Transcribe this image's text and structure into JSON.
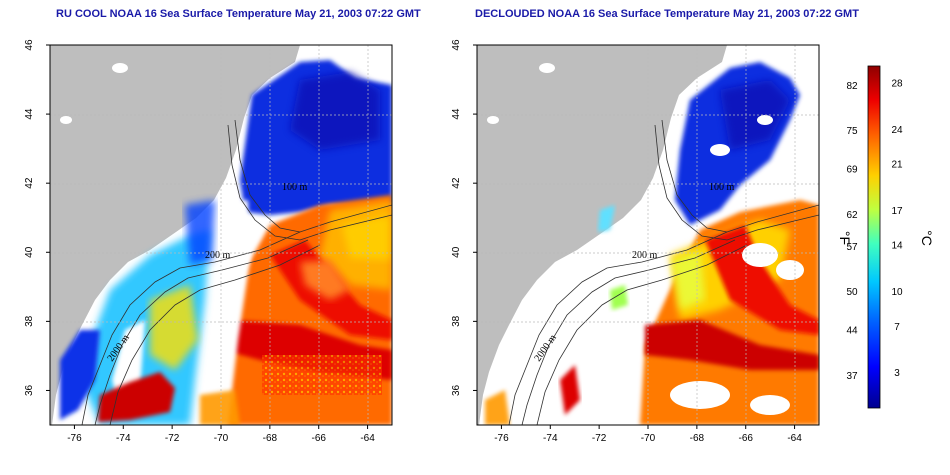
{
  "maps": [
    {
      "id": "left",
      "title": "RU COOL NOAA 16 Sea Surface Temperature May 21, 2003 07:22 GMT",
      "contour_labels": [
        "200 m",
        "100 m",
        "2000 m"
      ]
    },
    {
      "id": "right",
      "title": "DECLOUDED NOAA 16 Sea Surface Temperature May 21, 2003 07:22 GMT",
      "contour_labels": [
        "200 m",
        "100 m",
        "2000 m"
      ]
    }
  ],
  "axes": {
    "lon_ticks": [
      "-76",
      "-74",
      "-72",
      "-70",
      "-68",
      "-66",
      "-64"
    ],
    "lat_ticks": [
      "36",
      "38",
      "40",
      "42",
      "44",
      "46"
    ],
    "lon_range": [
      -77,
      -63
    ],
    "lat_range": [
      35,
      46
    ]
  },
  "colorbar": {
    "fahrenheit_ticks": [
      "82",
      "75",
      "69",
      "62",
      "57",
      "50",
      "44",
      "37"
    ],
    "celsius_ticks": [
      "28",
      "24",
      "21",
      "17",
      "14",
      "10",
      "7",
      "3"
    ],
    "fahrenheit_unit": "°F",
    "celsius_unit": "°C",
    "colors": [
      "#00008f",
      "#0000ff",
      "#0060ff",
      "#00c8ff",
      "#40ffbf",
      "#bfff40",
      "#ffd000",
      "#ff6000",
      "#ee0000",
      "#8f0000"
    ]
  }
}
